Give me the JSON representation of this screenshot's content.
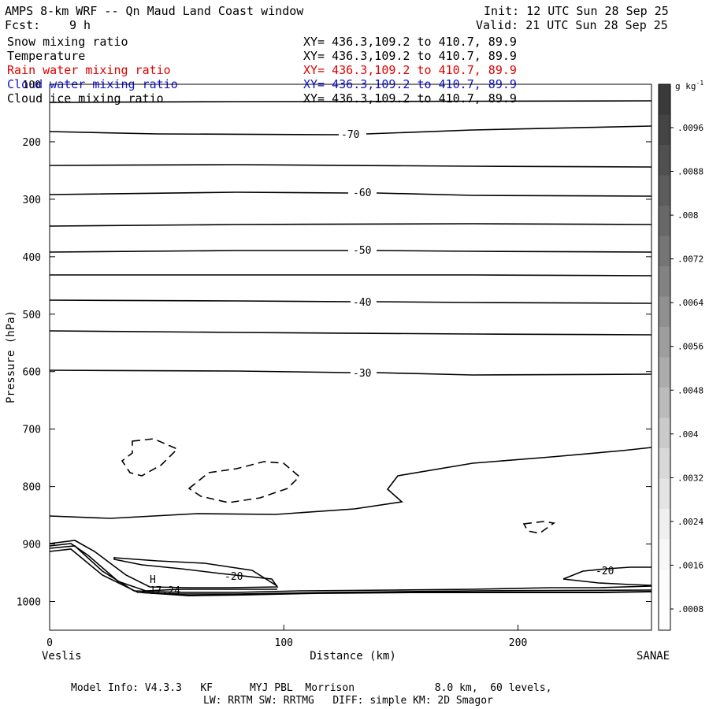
{
  "header": {
    "title": "AMPS 8-km WRF -- Qn Maud Land Coast window",
    "init": "Init: 12 UTC Sun 28 Sep 25",
    "fcst_label": "Fcst:",
    "fcst_value": "9 h",
    "valid": "Valid: 21 UTC Sun 28 Sep 25"
  },
  "fields": [
    {
      "name": "Snow mixing ratio",
      "xy": "XY= 436.3,109.2 to 410.7, 89.9",
      "color": "#000000"
    },
    {
      "name": "Temperature",
      "xy": "XY= 436.3,109.2 to 410.7, 89.9",
      "color": "#000000"
    },
    {
      "name": "Rain water mixing ratio",
      "xy": "XY= 436.3,109.2 to 410.7, 89.9",
      "color": "#e00000"
    },
    {
      "name": "Cloud water mixing ratio",
      "xy": "XY= 436.3,109.2 to 410.7, 89.9",
      "color": "#1010d0"
    },
    {
      "name": "Cloud ice mixing ratio",
      "xy": "XY= 436.3,109.2 to 410.7, 89.9",
      "color": "#000000"
    }
  ],
  "chart_data": {
    "type": "contour",
    "xlabel": "Distance (km)",
    "ylabel": "Pressure (hPa)",
    "xlim": [
      0,
      257
    ],
    "ylim": [
      1050,
      100
    ],
    "x_ticks": [
      "0",
      "100",
      "200"
    ],
    "y_ticks": [
      "100",
      "200",
      "300",
      "400",
      "500",
      "600",
      "700",
      "800",
      "900",
      "1000"
    ],
    "left_endpoint": "Veslis",
    "right_endpoint": "SANAE",
    "temperature_contour_labels": [
      "-70",
      "-60",
      "-50",
      "-40",
      "-30",
      "-20",
      "-20"
    ],
    "extremum": {
      "marker": "H",
      "value": "-17.24"
    },
    "colorbar": {
      "unit": "g kg",
      "unit_exp": "-1",
      "ticks": [
        ".0096",
        ".0088",
        ".008",
        ".0072",
        ".0064",
        ".0056",
        ".0048",
        ".004",
        ".0032",
        ".0024",
        ".0016",
        ".0008"
      ],
      "shades": [
        "#3a3a3a",
        "#444444",
        "#505050",
        "#5c5c5c",
        "#686868",
        "#757575",
        "#828282",
        "#909090",
        "#9e9e9e",
        "#acacac",
        "#bbbbbb",
        "#cacaca",
        "#d8d8d8",
        "#e4e4e4",
        "#efefef",
        "#f7f7f7",
        "#fcfcfc",
        "#ffffff"
      ]
    }
  },
  "footer": {
    "line1": "Model Info: V4.3.3   KF      MYJ PBL  Morrison             8.0 km,  60 levels,",
    "line2": "LW: RRTM SW: RRTMG   DIFF: simple KM: 2D Smagor"
  }
}
